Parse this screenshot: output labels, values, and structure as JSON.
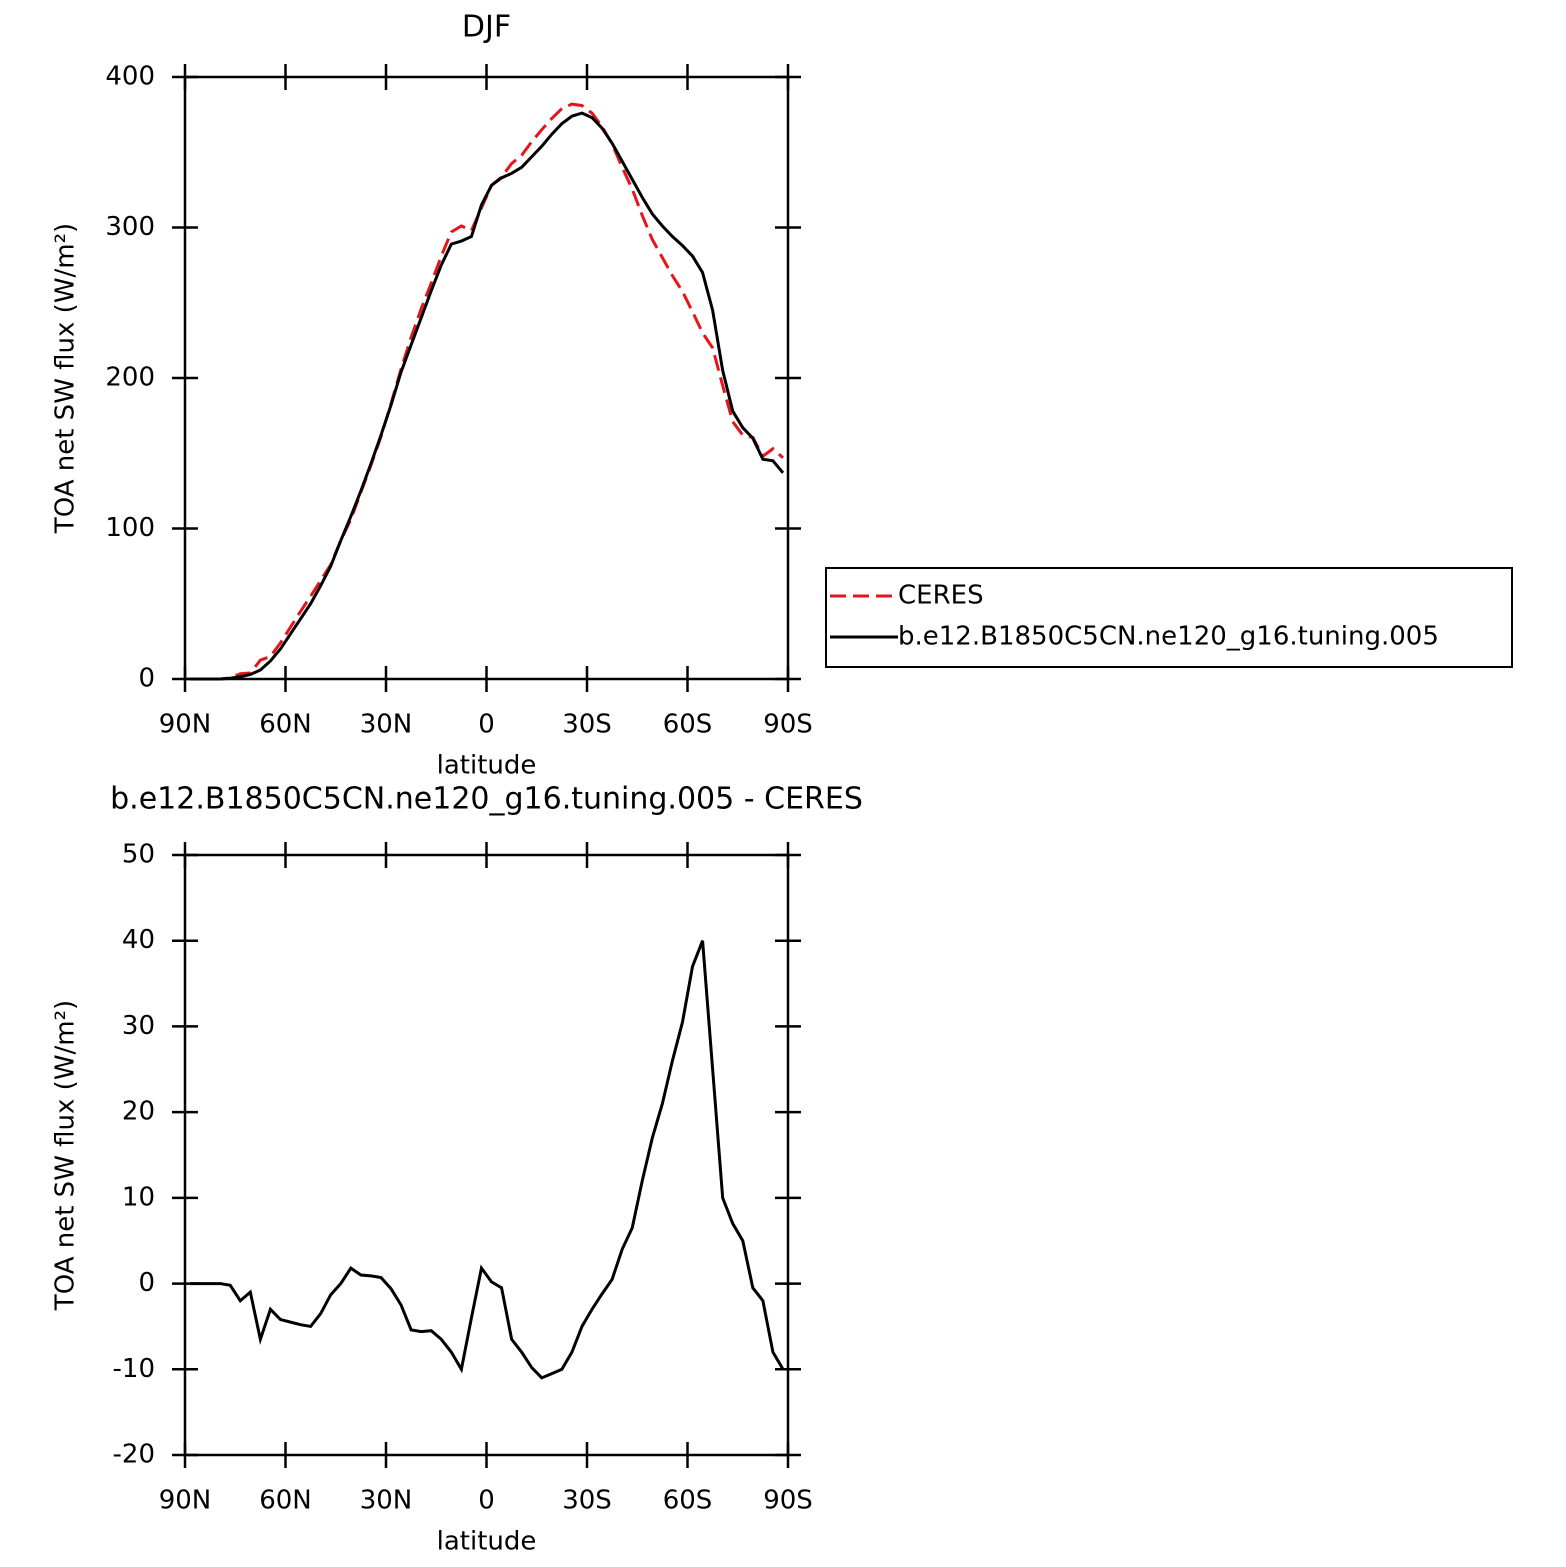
{
  "chart_data": [
    {
      "type": "line",
      "title": "DJF",
      "xlabel": "latitude",
      "ylabel": "TOA net SW flux (W/m²)",
      "x": [
        88.5,
        85.5,
        82.5,
        79.5,
        76.5,
        73.5,
        70.5,
        67.5,
        64.5,
        61.5,
        58.5,
        55.5,
        52.5,
        49.5,
        46.5,
        43.5,
        40.5,
        37.5,
        34.5,
        31.5,
        28.5,
        25.5,
        22.5,
        19.5,
        16.5,
        13.5,
        10.5,
        7.5,
        4.5,
        1.5,
        -1.5,
        -4.5,
        -7.5,
        -10.5,
        -13.5,
        -16.5,
        -19.5,
        -22.5,
        -25.5,
        -28.5,
        -31.5,
        -34.5,
        -37.5,
        -40.5,
        -43.5,
        -46.5,
        -49.5,
        -52.5,
        -55.5,
        -58.5,
        -61.5,
        -64.5,
        -67.5,
        -70.5,
        -73.5,
        -76.5,
        -79.5,
        -82.5,
        -85.5,
        -88.5
      ],
      "series": [
        {
          "name": "CERES",
          "color": "#e8141b",
          "line_style": "dashed",
          "values": [
            0,
            0,
            0,
            0,
            0.7,
            3.5,
            4,
            12.5,
            15,
            24,
            34.5,
            45,
            55,
            65.5,
            76,
            92,
            106,
            124,
            142,
            161,
            183,
            206,
            227,
            246,
            263,
            281,
            297,
            301,
            298,
            313,
            328,
            333.5,
            342.5,
            348,
            357,
            365,
            372.5,
            379,
            382,
            381,
            376,
            367,
            355.5,
            340,
            325.5,
            308,
            292,
            280,
            268,
            257.5,
            244,
            230,
            220,
            195,
            171,
            162,
            160.5,
            148,
            153,
            147
          ]
        },
        {
          "name": "b.e12.B1850C5CN.ne120_g16.tuning.005",
          "color": "#000000",
          "line_style": "solid",
          "values": [
            0,
            0,
            0,
            0,
            0.5,
            1.5,
            3,
            6,
            12,
            20,
            30,
            40,
            50,
            62,
            75,
            92,
            108,
            125,
            143,
            162,
            182,
            204,
            222,
            240,
            258,
            275,
            289,
            291,
            294,
            315,
            328,
            333,
            336,
            340,
            347,
            354,
            362,
            369,
            374,
            376,
            373,
            366,
            356,
            344,
            332,
            320,
            309,
            301,
            294,
            288,
            281,
            270,
            245,
            205,
            178,
            167,
            160,
            146,
            145,
            137
          ]
        }
      ],
      "xlim": [
        90,
        -90
      ],
      "xticks": [
        {
          "value": 90,
          "label": "90N"
        },
        {
          "value": 60,
          "label": "60N"
        },
        {
          "value": 30,
          "label": "30N"
        },
        0,
        {
          "value": -30,
          "label": "30S"
        },
        {
          "value": -60,
          "label": "60S"
        },
        {
          "value": -90,
          "label": "90S"
        }
      ],
      "ylim": [
        0,
        400
      ],
      "yticks": [
        0,
        100,
        200,
        300,
        400
      ],
      "legend": "right"
    },
    {
      "type": "line",
      "title": "b.e12.B1850C5CN.ne120_g16.tuning.005 - CERES",
      "xlabel": "latitude",
      "ylabel": "TOA net SW flux (W/m²)",
      "x": [
        88.5,
        85.5,
        82.5,
        79.5,
        76.5,
        73.5,
        70.5,
        67.5,
        64.5,
        61.5,
        58.5,
        55.5,
        52.5,
        49.5,
        46.5,
        43.5,
        40.5,
        37.5,
        34.5,
        31.5,
        28.5,
        25.5,
        22.5,
        19.5,
        16.5,
        13.5,
        10.5,
        7.5,
        4.5,
        1.5,
        -1.5,
        -4.5,
        -7.5,
        -10.5,
        -13.5,
        -16.5,
        -19.5,
        -22.5,
        -25.5,
        -28.5,
        -31.5,
        -34.5,
        -37.5,
        -40.5,
        -43.5,
        -46.5,
        -49.5,
        -52.5,
        -55.5,
        -58.5,
        -61.5,
        -64.5,
        -67.5,
        -70.5,
        -73.5,
        -76.5,
        -79.5,
        -82.5,
        -85.5,
        -88.5
      ],
      "series": [
        {
          "color": "#000000",
          "line_style": "solid",
          "values": [
            0,
            0,
            0,
            0,
            -0.2,
            -2,
            -1,
            -6.5,
            -3,
            -4.2,
            -4.5,
            -4.8,
            -5,
            -3.5,
            -1.3,
            0,
            1.8,
            1,
            0.9,
            0.7,
            -0.6,
            -2.5,
            -5.4,
            -5.6,
            -5.5,
            -6.5,
            -8,
            -10,
            -4,
            1.8,
            0.2,
            -0.5,
            -6.5,
            -8,
            -9.8,
            -11,
            -10.5,
            -10,
            -8,
            -5,
            -3,
            -1.2,
            0.5,
            4,
            6.5,
            12,
            17,
            21,
            26,
            30.5,
            37,
            40,
            25,
            10,
            7,
            5,
            -0.5,
            -2,
            -8,
            -10
          ]
        }
      ],
      "xlim": [
        90,
        -90
      ],
      "xticks": [
        {
          "value": 90,
          "label": "90N"
        },
        {
          "value": 60,
          "label": "60N"
        },
        {
          "value": 30,
          "label": "30N"
        },
        0,
        {
          "value": -30,
          "label": "30S"
        },
        {
          "value": -60,
          "label": "60S"
        },
        {
          "value": -90,
          "label": "90S"
        }
      ],
      "ylim": [
        -20,
        50
      ],
      "yticks": [
        -20,
        -10,
        0,
        10,
        20,
        30,
        40,
        50
      ]
    }
  ]
}
